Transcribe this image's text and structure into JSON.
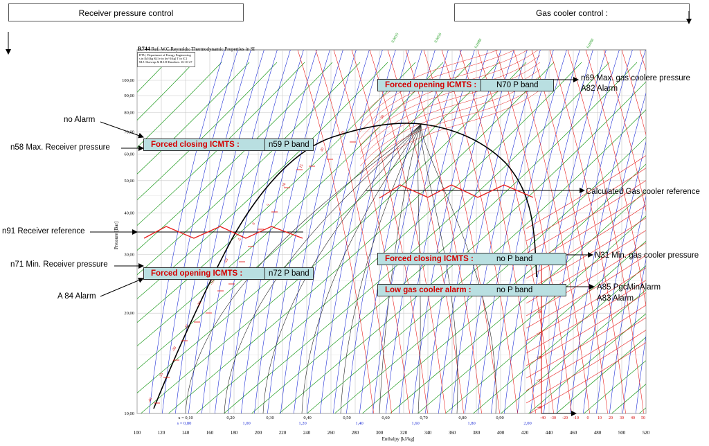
{
  "header": {
    "receiver_title": "Receiver pressure control",
    "gascooler_title": "Gas cooler control :"
  },
  "chart": {
    "title_main": "R744",
    "title_rest": "Ref: W.C.Reynolds: Thermodynamic Properties in SI",
    "legend_lines": [
      "DTU, Department of Energy Engineering",
      "s in [kJ/(kg K)]  v in [m^3/kg]  T in [C]",
      "M.J. Skovrup & H.J.H Knudsen. 16-10-27"
    ],
    "xlabel": "Enthalpy [kJ/kg]",
    "ylabel": "Pressure [Bar]",
    "x_ticks": [
      "100",
      "120",
      "140",
      "160",
      "180",
      "200",
      "220",
      "240",
      "260",
      "280",
      "300",
      "320",
      "340",
      "360",
      "380",
      "400",
      "420",
      "440",
      "460",
      "480",
      "500",
      "520"
    ],
    "y_ticks": [
      "10,00",
      "20,00",
      "30,00",
      "40,00",
      "50,00",
      "60,00",
      "70,00",
      "80,00",
      "90,00",
      "100,00"
    ],
    "quality_labels": [
      "x = 0,10",
      "0,20",
      "0,30",
      "0,40",
      "0,50",
      "0,60",
      "0,70",
      "0,80",
      "0,90"
    ],
    "entropy_labels": [
      "s = 0,80",
      "1,00",
      "1,20",
      "1,40",
      "1,60",
      "1,80",
      "2,00"
    ],
    "axis_extra_ticks": [
      "-40",
      "-30",
      "-20",
      "-10",
      "0",
      "10",
      "20",
      "30",
      "40",
      "50"
    ],
    "isotherm_labels": [
      "-40",
      "-35",
      "-30",
      "-25",
      "-20",
      "-15",
      "-10",
      "-5",
      "0",
      "5",
      "10",
      "15",
      "20",
      "25",
      "30"
    ],
    "right_isotherm_labels": [
      "-10",
      "-20",
      "-25",
      "-30",
      "-35",
      "-40"
    ],
    "top_density_labels": [
      "0,0015",
      "0,0050",
      "0,0080",
      "0,0060"
    ],
    "colors": {
      "band_bg": "#b9dfe1",
      "band_label": "#d40000",
      "isotherm": "#e8201e",
      "isentrope": "#1f2fd6",
      "isochore": "#1b9a1b",
      "isoquality": "#222222",
      "zigzag": "#e8201e"
    }
  },
  "bands": {
    "forced_closing_receiver": {
      "label": "Forced closing ICMTS :",
      "sub": "n59 P band"
    },
    "forced_opening_receiver": {
      "label": "Forced opening ICMTS :",
      "sub": "n72 P band"
    },
    "forced_opening_gc": {
      "label": "Forced opening ICMTS :",
      "sub": "N70 P band"
    },
    "forced_closing_gc": {
      "label": "Forced closing ICMTS :",
      "sub": "no P band"
    },
    "low_gc_alarm": {
      "label": "Low gas cooler alarm :",
      "sub": "no P band"
    }
  },
  "annotations": {
    "no_alarm": "no Alarm",
    "n58": "n58 Max. Receiver pressure",
    "n91": "n91 Receiver reference",
    "n71": "n71 Min. Receiver pressure",
    "a84": "A 84 Alarm",
    "n69": "n69 Max. gas coolere pressure",
    "a82": "A82 Alarm",
    "gc_ref": "Calculated Gas cooler reference",
    "n31": "N31 Min. gas cooler pressure",
    "a85": "A85 PgcMinAlarm",
    "a83": "A83 Alarm"
  }
}
